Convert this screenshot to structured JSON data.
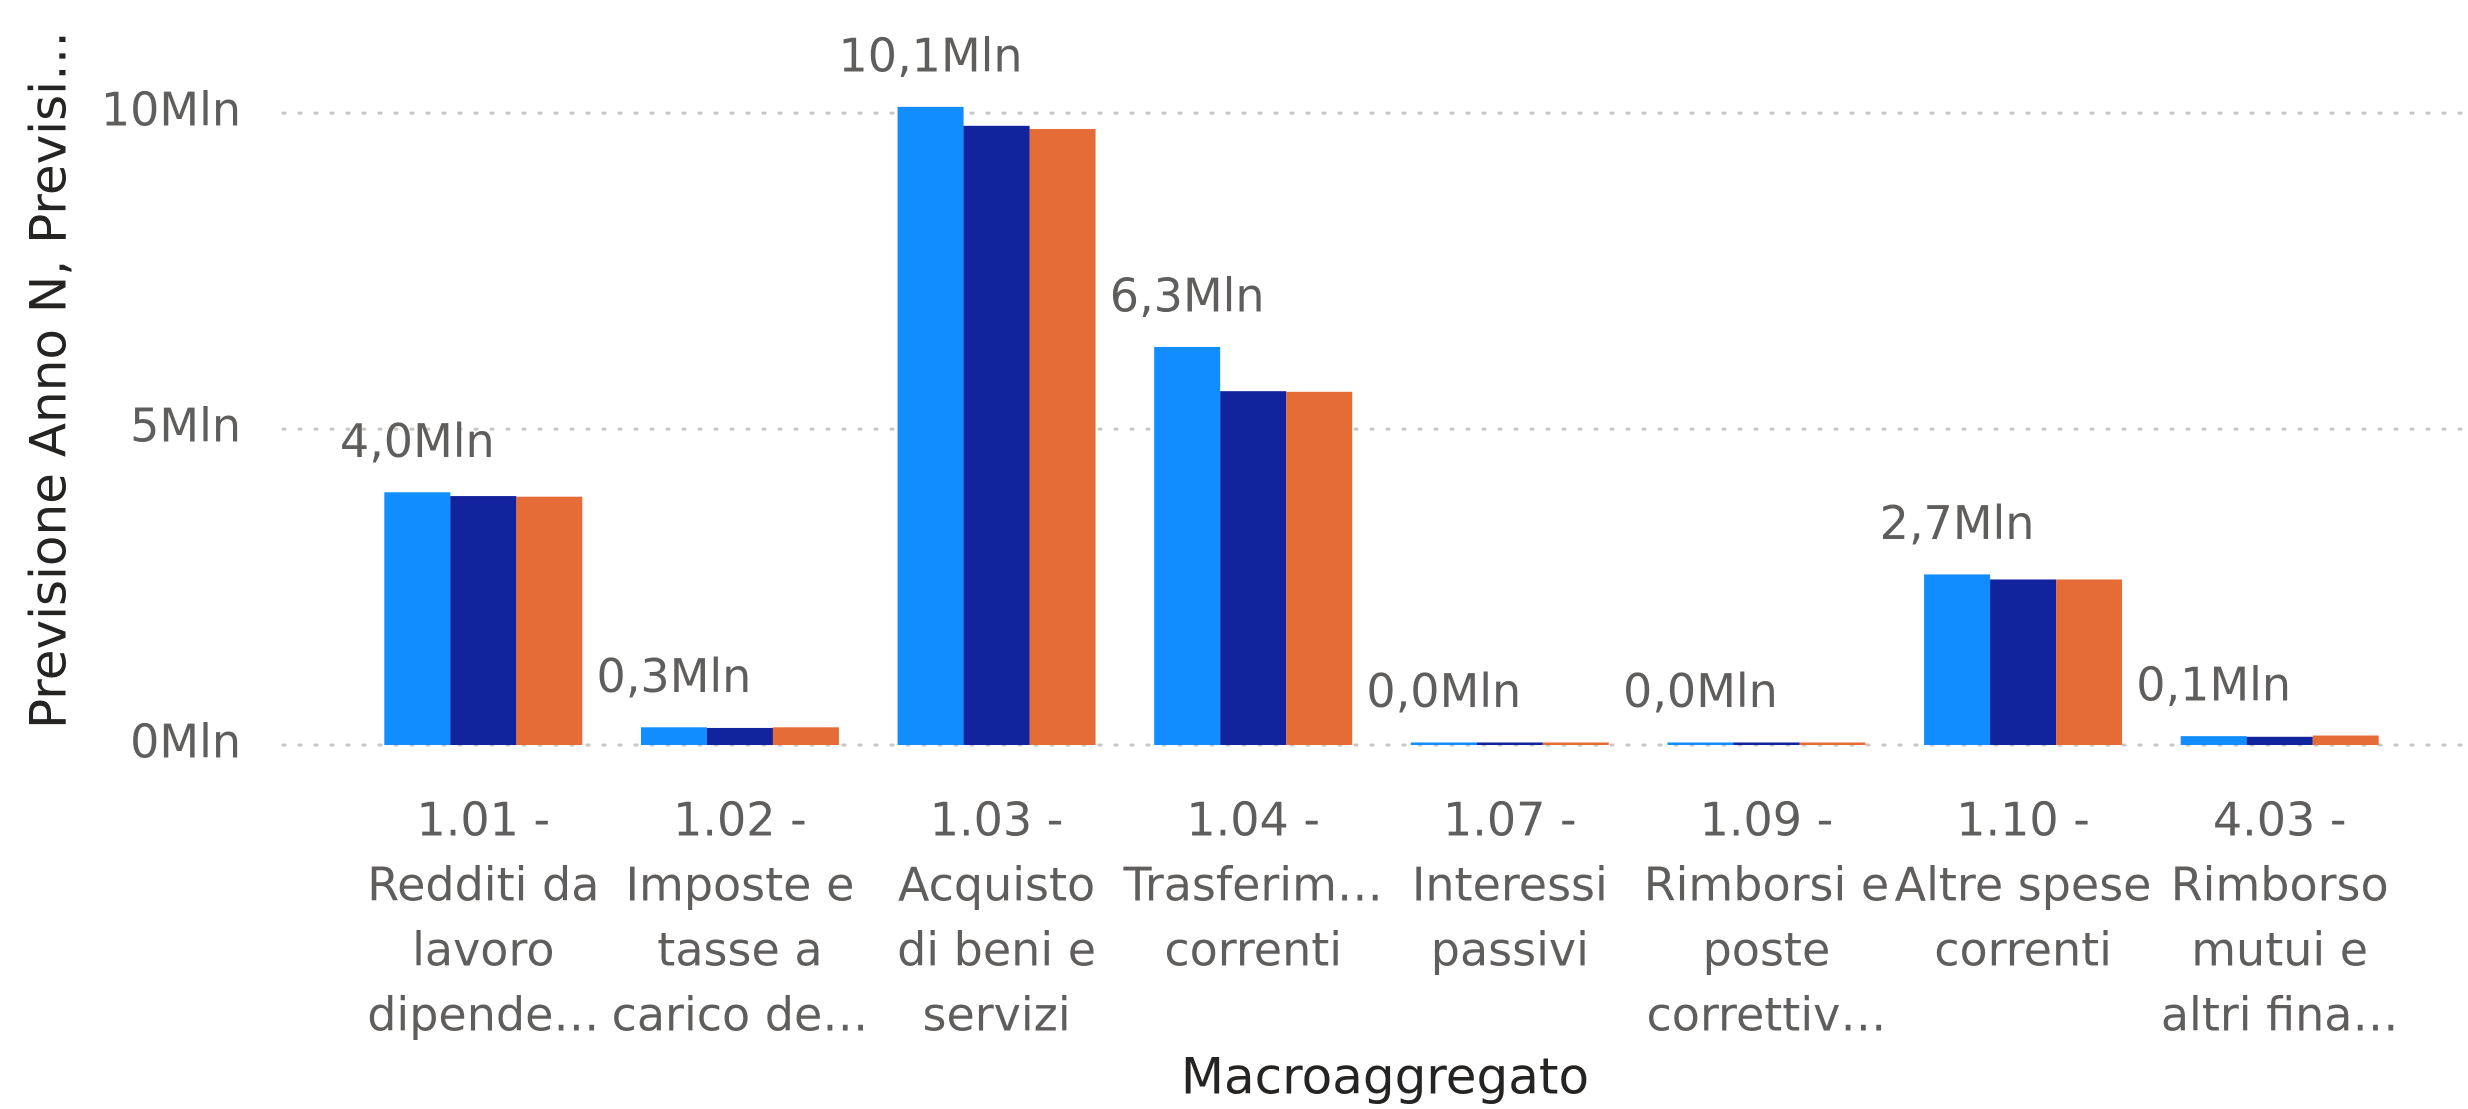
{
  "chart_data": {
    "type": "bar",
    "y_axis_label": "Previsione Anno N, Previsi…",
    "x_axis_label": "Macroaggregato",
    "categories": [
      [
        "1.01 -",
        "Redditi da",
        "lavoro",
        "dipende…"
      ],
      [
        "1.02 -",
        "Imposte e",
        "tasse a",
        "carico de…"
      ],
      [
        "1.03 -",
        "Acquisto",
        "di beni e",
        "servizi"
      ],
      [
        "1.04 -",
        "Trasferim…",
        "correnti"
      ],
      [
        "1.07 -",
        "Interessi",
        "passivi"
      ],
      [
        "1.09 -",
        "Rimborsi e",
        "poste",
        "correttiv…"
      ],
      [
        "1.10 -",
        "Altre spese",
        "correnti"
      ],
      [
        "4.03 -",
        "Rimborso",
        "mutui e",
        "altri fina…"
      ]
    ],
    "series": [
      {
        "color": "#118DFF",
        "values": [
          4.0,
          0.28,
          10.1,
          6.3,
          0.04,
          0.04,
          2.7,
          0.14
        ],
        "value_labels": [
          "4,0Mln",
          "0,3Mln",
          "10,1Mln",
          "6,3Mln",
          "0,0Mln",
          "0,0Mln",
          "2,7Mln",
          "0,1Mln"
        ]
      },
      {
        "color": "#12239E",
        "values": [
          3.94,
          0.27,
          9.8,
          5.6,
          0.04,
          0.04,
          2.62,
          0.13
        ]
      },
      {
        "color": "#E66C37",
        "values": [
          3.93,
          0.28,
          9.75,
          5.59,
          0.04,
          0.04,
          2.62,
          0.15
        ]
      }
    ],
    "ylim": [
      0,
      11
    ],
    "yticks": [
      {
        "value": 0,
        "label": "0Mln"
      },
      {
        "value": 5,
        "label": "5Mln"
      },
      {
        "value": 10,
        "label": "10Mln"
      }
    ],
    "grid": true
  }
}
